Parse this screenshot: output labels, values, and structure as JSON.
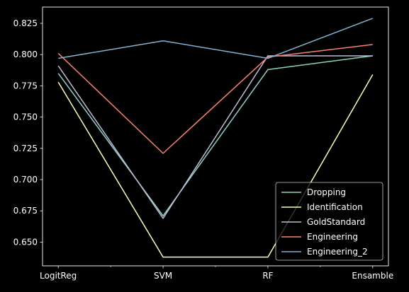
{
  "chart_data": {
    "type": "line",
    "categories": [
      "LogitReg",
      "SVM",
      "RF",
      "Ensamble"
    ],
    "minor_ticks": [
      0.5,
      1.5,
      2.5
    ],
    "series": [
      {
        "name": "Dropping",
        "color": "#8dd3c7",
        "values": [
          0.785,
          0.671,
          0.788,
          0.799
        ]
      },
      {
        "name": "Identification",
        "color": "#feffb3",
        "values": [
          0.778,
          0.638,
          0.638,
          0.784
        ]
      },
      {
        "name": "GoldStandard",
        "color": "#bfbbd9",
        "values": [
          0.791,
          0.669,
          0.799,
          0.799
        ]
      },
      {
        "name": "Engineering",
        "color": "#fa8174",
        "values": [
          0.801,
          0.721,
          0.798,
          0.808
        ]
      },
      {
        "name": "Engineering_2",
        "color": "#81b1d2",
        "values": [
          0.797,
          0.811,
          0.797,
          0.829
        ]
      }
    ],
    "yticks": [
      0.65,
      0.675,
      0.7,
      0.725,
      0.75,
      0.775,
      0.8,
      0.825
    ],
    "ylim": [
      0.631,
      0.838
    ],
    "xlim": [
      -0.15,
      3.15
    ],
    "legend_position": "lower-right",
    "background": "#000000",
    "axis_color": "#ffffff"
  }
}
